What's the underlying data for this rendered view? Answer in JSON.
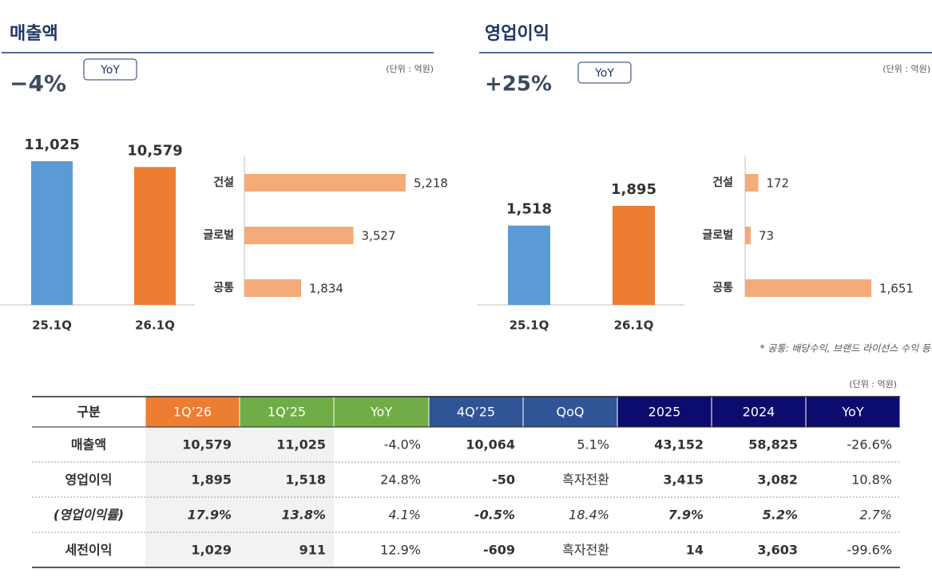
{
  "panels": [
    {
      "title": "매출액",
      "change": "−4%",
      "badge": "YoY",
      "unit": "(단위 : 억원)"
    },
    {
      "title": "영업이익",
      "change": "+25%",
      "badge": "YoY",
      "unit": "(단위 : 억원)"
    }
  ],
  "chart_data": [
    {
      "type": "bar",
      "categories": [
        "25.1Q",
        "26.1Q"
      ],
      "values": [
        11025,
        10579
      ],
      "value_labels": [
        "11,025",
        "10,579"
      ],
      "colors": [
        "#5B9BD5",
        "#ED7D31"
      ]
    },
    {
      "type": "barh",
      "categories": [
        "건설",
        "글로벌",
        "공통"
      ],
      "values": [
        5218,
        3527,
        1834
      ],
      "value_labels": [
        "5,218",
        "3,527",
        "1,834"
      ],
      "color": "#F4AA79"
    },
    {
      "type": "bar",
      "categories": [
        "25.1Q",
        "26.1Q"
      ],
      "values": [
        1518,
        1895
      ],
      "value_labels": [
        "1,518",
        "1,895"
      ],
      "colors": [
        "#5B9BD5",
        "#ED7D31"
      ]
    },
    {
      "type": "barh",
      "categories": [
        "건설",
        "글로벌",
        "공통"
      ],
      "values": [
        172,
        73,
        1651
      ],
      "value_labels": [
        "172",
        "73",
        "1,651"
      ],
      "color": "#F4AA79"
    }
  ],
  "footnote": "* 공통: 배당수익, 브랜드 라이선스 수익 등",
  "table": {
    "unit": "(단위 : 억원)",
    "header": [
      "구분",
      "1Q’26",
      "1Q’25",
      "YoY",
      "4Q’25",
      "QoQ",
      "2025",
      "2024",
      "YoY"
    ],
    "rows": [
      [
        "매출액",
        "10,579",
        "11,025",
        "-4.0%",
        "10,064",
        "5.1%",
        "43,152",
        "58,825",
        "-26.6%"
      ],
      [
        "영업이익",
        "1,895",
        "1,518",
        "24.8%",
        "-50",
        "흑자전환",
        "3,415",
        "3,082",
        "10.8%"
      ],
      [
        "(영업이익률)",
        "17.9%",
        "13.8%",
        "4.1%",
        "-0.5%",
        "18.4%",
        "7.9%",
        "5.2%",
        "2.7%"
      ],
      [
        "세전이익",
        "1,029",
        "911",
        "12.9%",
        "-609",
        "흑자전환",
        "14",
        "3,603",
        "-99.6%"
      ]
    ]
  }
}
